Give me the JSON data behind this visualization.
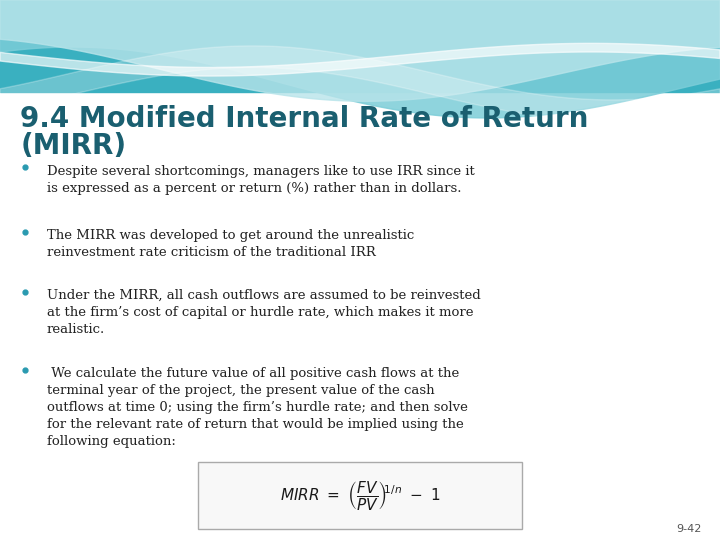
{
  "title_line1": "9.4 Modified Internal Rate of Return",
  "title_line2": "(MIRR)",
  "title_color": "#1a5f70",
  "title_fontsize": 20,
  "bullet_points": [
    "Despite several shortcomings, managers like to use IRR since it\nis expressed as a percent or return (%) rather than in dollars.",
    "The MIRR was developed to get around the unrealistic\nreinvestment rate criticism of the traditional IRR",
    "Under the MIRR, all cash outflows are assumed to be reinvested\nat the firm’s cost of capital or hurdle rate, which makes it more\nrealistic.",
    " We calculate the future value of all positive cash flows at the\nterminal year of the project, the present value of the cash\noutflows at time 0; using the firm’s hurdle rate; and then solve\nfor the relevant rate of return that would be implied using the\nfollowing equation:"
  ],
  "bullet_color": "#222222",
  "bullet_fontsize": 9.5,
  "bullet_dot_color": "#2a9ab0",
  "background_color": "#ffffff",
  "wave_color_dark": "#3ab0c0",
  "wave_color_mid": "#7ccdd8",
  "wave_color_light": "#b8e4ea",
  "slide_number": "9-42",
  "formula_box_facecolor": "#f8f8f8",
  "formula_border_color": "#aaaaaa"
}
